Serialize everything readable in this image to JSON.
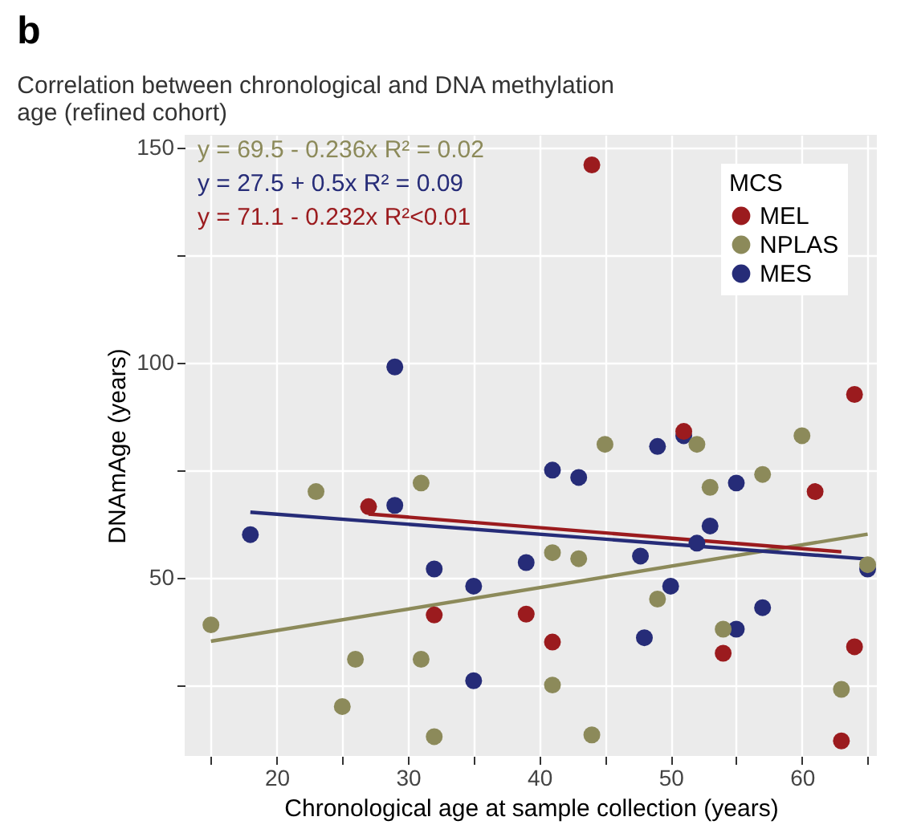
{
  "chart_data": {
    "type": "scatter",
    "title": "Correlation between chronological and DNA methylation age (refined cohort)",
    "xlabel": "Chronological age at sample collection (years)",
    "ylabel": "DNAmAge (years)",
    "legend_title": "MCS",
    "annotations": [
      "b",
      "y = 69.5 - 0.236x  R² = 0.02",
      "y = 27.5 + 0.5x  R² = 0.09",
      "y = 71.1 - 0.232x  R²<0.01"
    ],
    "xlim": [
      13,
      65.7
    ],
    "ylim": [
      8.5,
      153
    ],
    "xticks": [
      {
        "value": 15,
        "label": null
      },
      20,
      {
        "value": 25,
        "label": null
      },
      30,
      {
        "value": 35,
        "label": null
      },
      40,
      {
        "value": 45,
        "label": null
      },
      50,
      {
        "value": 55,
        "label": null
      },
      60,
      {
        "value": 65,
        "label": null
      }
    ],
    "yticks": [
      {
        "value": 25,
        "label": null
      },
      50,
      {
        "value": 75,
        "label": null
      },
      100,
      {
        "value": 125,
        "label": null
      },
      150
    ],
    "grid": true,
    "legend": "top right",
    "marker": "circle",
    "series": [
      {
        "name": "MEL",
        "color": "#9b1b1e",
        "x": [
          27,
          32,
          39,
          44,
          51,
          64,
          61,
          41,
          54,
          64,
          63
        ],
        "values": [
          66.5,
          41.3,
          41.5,
          146,
          84,
          92.6,
          70,
          35,
          32.4,
          33.9,
          12
        ]
      },
      {
        "name": "NPLAS",
        "color": "#8c8a5a",
        "x": [
          15,
          23,
          31,
          26,
          31,
          25,
          32,
          45,
          52,
          60,
          53,
          57,
          41,
          43,
          49,
          54,
          41,
          44,
          63,
          65
        ],
        "values": [
          39,
          70,
          72,
          31,
          31,
          20,
          13,
          81,
          81,
          83,
          71,
          74,
          55.8,
          54.4,
          45,
          38,
          25,
          13.4,
          24,
          53
        ]
      },
      {
        "name": "MES",
        "color": "#262c78",
        "x": [
          29,
          18,
          29,
          32,
          35,
          35,
          39,
          51,
          41,
          43,
          49,
          55,
          53,
          52,
          47.7,
          50,
          48,
          55,
          57,
          65
        ],
        "values": [
          99,
          60,
          66.8,
          52,
          48,
          26,
          53.5,
          83,
          75,
          73.3,
          80.5,
          72,
          62,
          58,
          55,
          48,
          36,
          38,
          43,
          52
        ]
      },
      {
        "type": "line",
        "marker": "none",
        "line_style": "solid",
        "color": "#8c8a5a",
        "x": [
          15,
          65
        ],
        "values": [
          35.2,
          60.1
        ]
      },
      {
        "type": "line",
        "marker": "none",
        "line_style": "solid",
        "color": "#262c78",
        "x": [
          18,
          65
        ],
        "values": [
          65.2,
          54.3
        ]
      },
      {
        "type": "line",
        "marker": "none",
        "line_style": "solid",
        "color": "#9b1b1e",
        "x": [
          27,
          63
        ],
        "values": [
          64.8,
          56
        ]
      }
    ]
  }
}
